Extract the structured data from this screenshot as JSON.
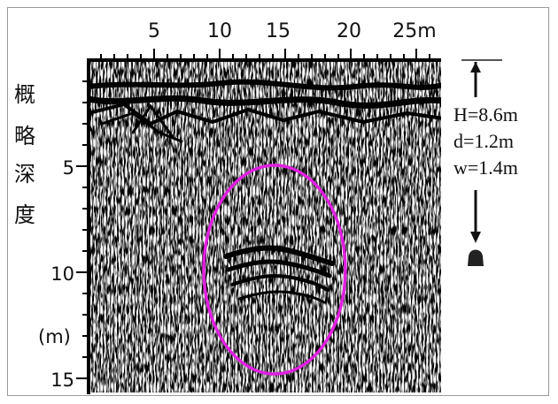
{
  "figure": {
    "x_ticks": [
      "5",
      "10",
      "15",
      "20",
      "25m"
    ],
    "y_ticks": [
      "5",
      "10",
      "15"
    ],
    "y_unit": "(m)",
    "y_title_chars": [
      "概",
      "略",
      "深",
      "度"
    ],
    "annotations": [
      "H=8.6m",
      "d=1.2m",
      "w=1.4m"
    ],
    "highlight_color": "#e020e0",
    "scale_marker_color": "#111111"
  }
}
